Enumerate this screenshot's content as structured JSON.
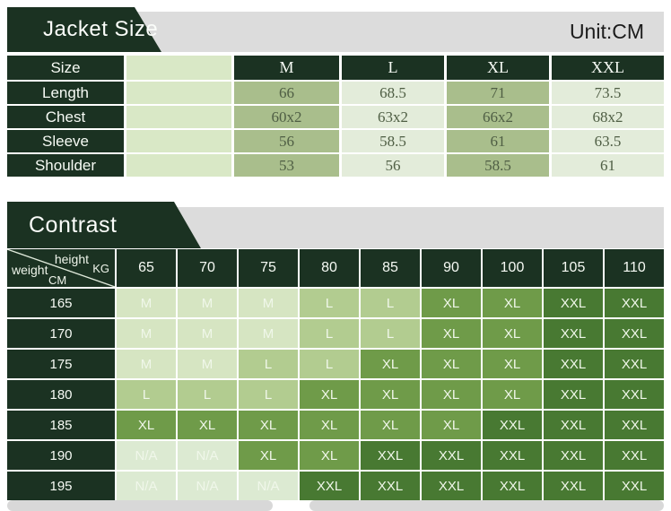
{
  "banner1": {
    "title": "Jacket Size",
    "unit": "Unit:CM"
  },
  "size_table": {
    "corner_label": "Size",
    "columns": [
      "M",
      "L",
      "XL",
      "XXL"
    ],
    "rows": [
      {
        "label": "Length",
        "values": [
          "66",
          "68.5",
          "71",
          "73.5"
        ]
      },
      {
        "label": "Chest",
        "values": [
          "60x2",
          "63x2",
          "66x2",
          "68x2"
        ]
      },
      {
        "label": "Sleeve",
        "values": [
          "56",
          "58.5",
          "61",
          "63.5"
        ]
      },
      {
        "label": "Shoulder",
        "values": [
          "53",
          "56",
          "58.5",
          "61"
        ]
      }
    ]
  },
  "banner2": {
    "title": "Contrast"
  },
  "contrast_table": {
    "corner": {
      "top_label": "height",
      "top_unit": "KG",
      "bottom_label": "weight",
      "bottom_unit": "CM"
    },
    "weights": [
      "65",
      "70",
      "75",
      "80",
      "85",
      "90",
      "100",
      "105",
      "110"
    ],
    "rows": [
      {
        "height": "165",
        "sizes": [
          "M",
          "M",
          "M",
          "L",
          "L",
          "XL",
          "XL",
          "XXL",
          "XXL"
        ]
      },
      {
        "height": "170",
        "sizes": [
          "M",
          "M",
          "M",
          "L",
          "L",
          "XL",
          "XL",
          "XXL",
          "XXL"
        ]
      },
      {
        "height": "175",
        "sizes": [
          "M",
          "M",
          "L",
          "L",
          "XL",
          "XL",
          "XL",
          "XXL",
          "XXL"
        ]
      },
      {
        "height": "180",
        "sizes": [
          "L",
          "L",
          "L",
          "XL",
          "XL",
          "XL",
          "XL",
          "XXL",
          "XXL"
        ]
      },
      {
        "height": "185",
        "sizes": [
          "XL",
          "XL",
          "XL",
          "XL",
          "XL",
          "XL",
          "XXL",
          "XXL",
          "XXL"
        ]
      },
      {
        "height": "190",
        "sizes": [
          "N/A",
          "N/A",
          "XL",
          "XL",
          "XXL",
          "XXL",
          "XXL",
          "XXL",
          "XXL"
        ]
      },
      {
        "height": "195",
        "sizes": [
          "N/A",
          "N/A",
          "N/A",
          "XXL",
          "XXL",
          "XXL",
          "XXL",
          "XXL",
          "XXL"
        ]
      }
    ]
  },
  "colors": {
    "dark_green": "#1b3222",
    "gray_bar": "#dcdcdc",
    "table_mid_green": "#a9be8c",
    "table_pale_green": "#e3ecda",
    "table_spacer_green": "#d9e8c6",
    "value_text": "#4f5e44",
    "cell_m": "#d6e5c2",
    "cell_l": "#b2cc90",
    "cell_xl": "#6f9b49",
    "cell_xxl": "#487932",
    "cell_na": "#dcead2",
    "cell_text": "#f0f7ea",
    "bottom_bar": "#d8d8d8",
    "unit_text": "#1c1c1c"
  }
}
